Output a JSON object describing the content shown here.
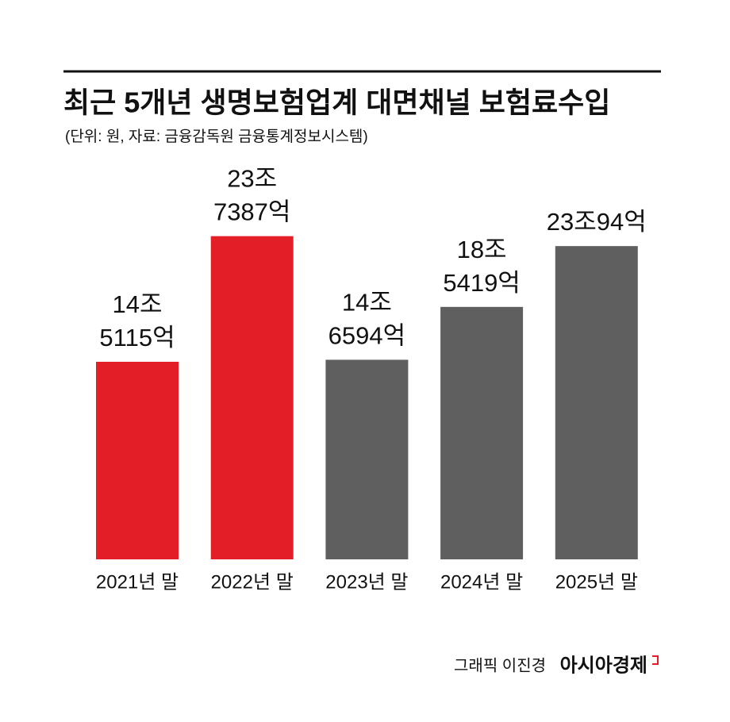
{
  "chart_data": {
    "type": "bar",
    "title": "최근 5개년 생명보험업계 대면채널 보험료수입",
    "subtitle": "(단위: 원, 자료: 금융감독원 금융통계정보시스템)",
    "categories": [
      "2021년 말",
      "2022년 말",
      "2023년 말",
      "2024년 말",
      "2025년 말"
    ],
    "values": [
      145115,
      237387,
      146594,
      185419,
      230094
    ],
    "value_labels": [
      "14조 5115억",
      "23조 7387억",
      "14조 6594억",
      "18조 5419억",
      "23조94억"
    ],
    "colors": [
      "#e31e26",
      "#e31e26",
      "#5f5f5f",
      "#5f5f5f",
      "#5f5f5f"
    ],
    "credit": "그래픽 이진경",
    "publisher": "아시아경제"
  }
}
